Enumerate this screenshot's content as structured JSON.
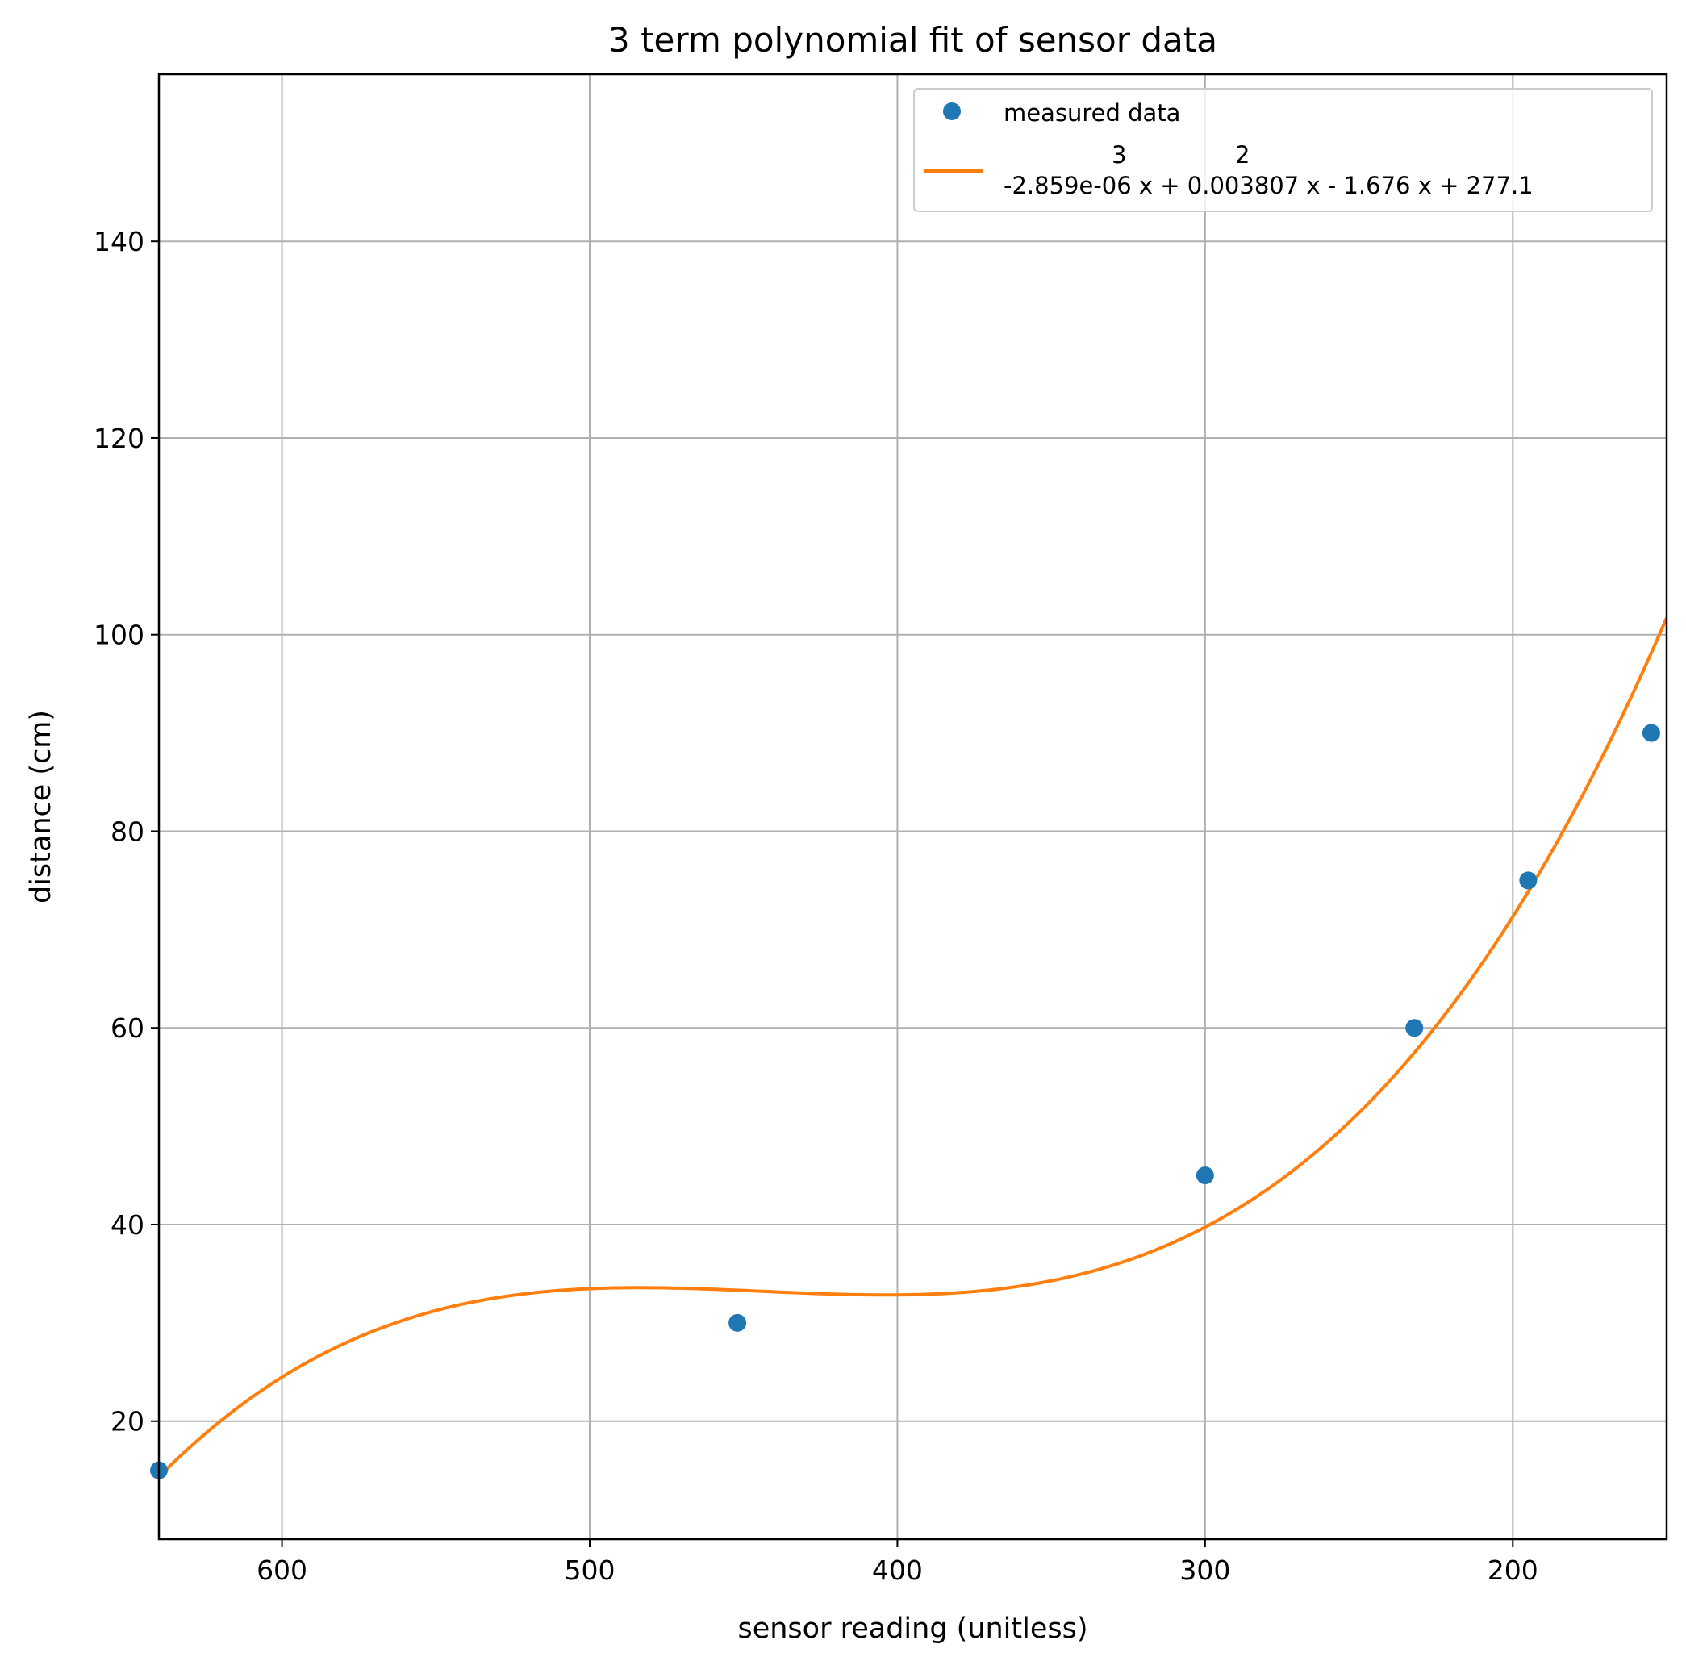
{
  "chart_data": {
    "type": "scatter",
    "title": "3 term polynomial fit of sensor data",
    "xlabel": "sensor reading (unitless)",
    "ylabel": "distance (cm)",
    "xlim": [
      640,
      150
    ],
    "ylim": [
      8,
      157
    ],
    "x_inverted": true,
    "grid": true,
    "legend_position": "top-right",
    "x_ticks": [
      600,
      500,
      400,
      300,
      200
    ],
    "y_ticks": [
      20,
      40,
      60,
      80,
      100,
      120,
      140
    ],
    "series": [
      {
        "name": "measured data",
        "kind": "points",
        "color": "#1f77b4",
        "x": [
          640,
          452,
          300,
          232,
          195,
          155
        ],
        "y": [
          15,
          30,
          45,
          60,
          75,
          90
        ]
      },
      {
        "name": "-2.859e-06 x + 0.003807 x - 1.676 x + 277.1",
        "kind": "fit-line",
        "color": "#ff7f0e",
        "coefficients": [
          -2.859e-06,
          0.003807,
          -1.676,
          277.1
        ],
        "x_range": [
          640,
          150
        ]
      }
    ],
    "legend": {
      "points_label": "measured data",
      "fit_exponents": [
        "3",
        "2"
      ],
      "fit_label": "-2.859e-06 x + 0.003807 x - 1.676 x + 277.1"
    }
  }
}
